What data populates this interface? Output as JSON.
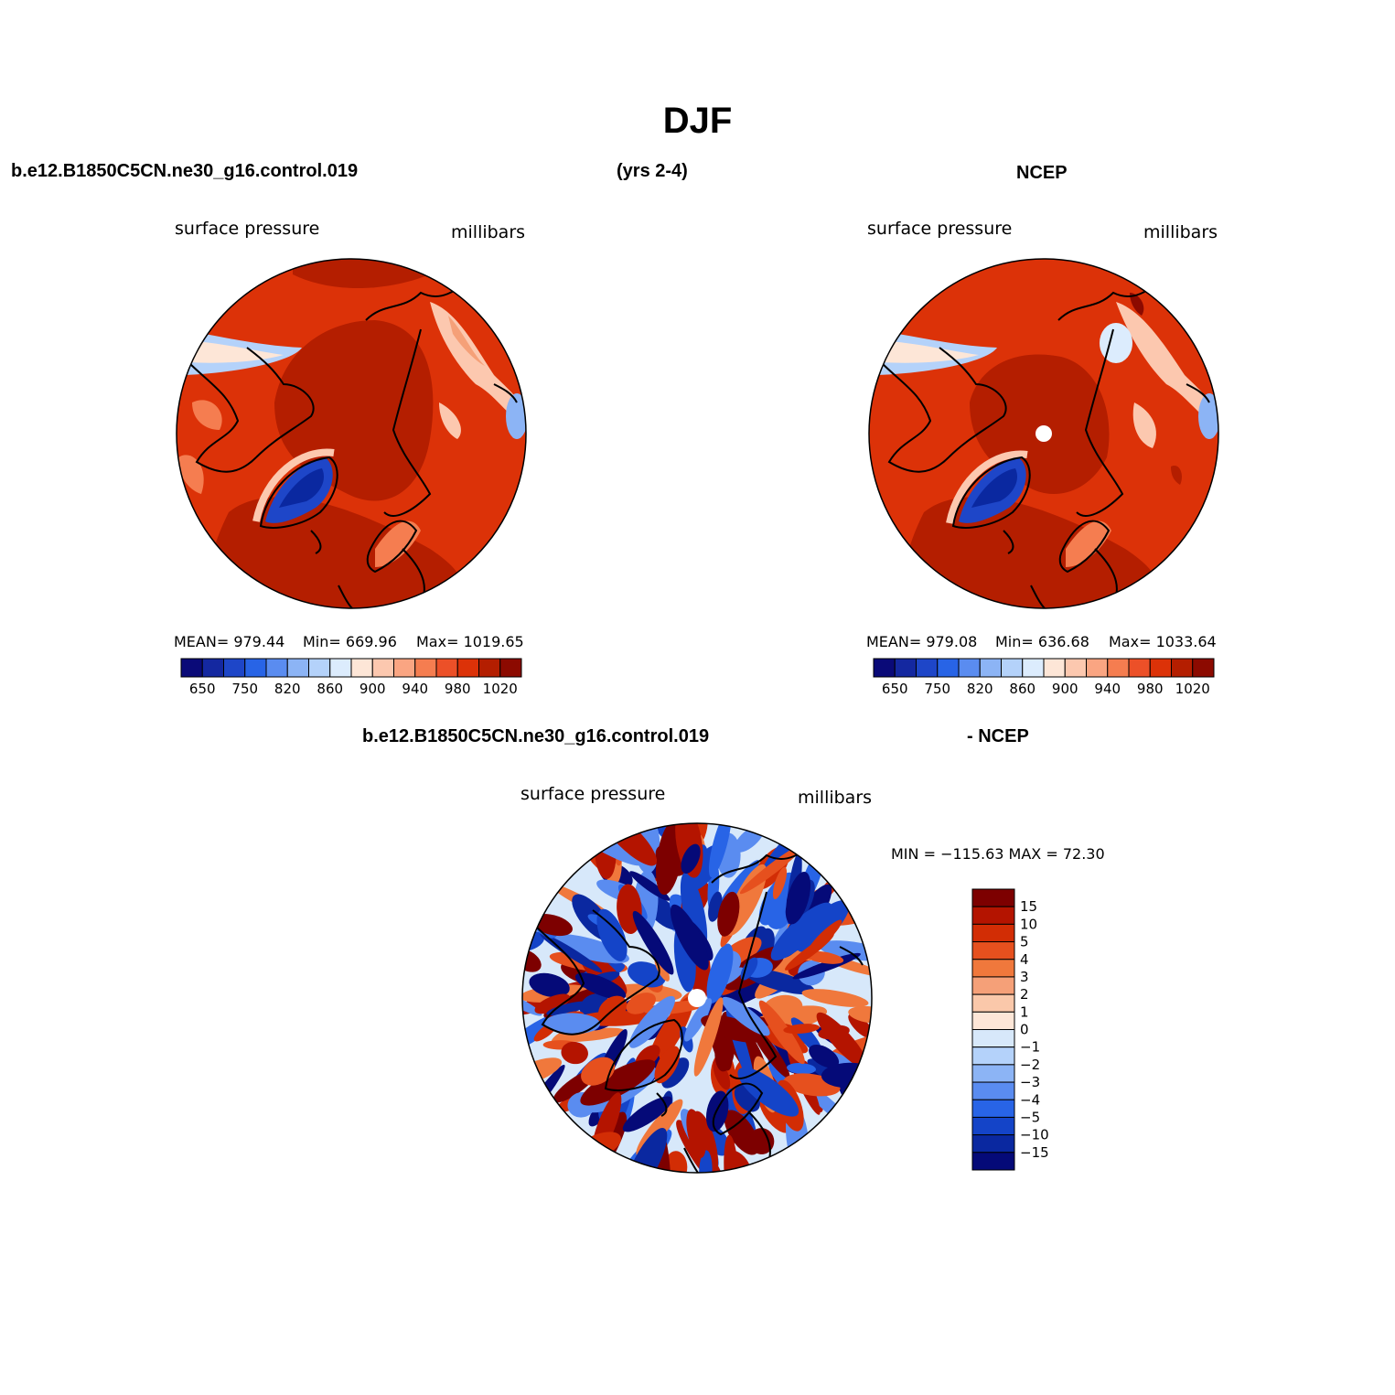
{
  "title": "DJF",
  "headers": {
    "case_name": "b.e12.B1850C5CN.ne30_g16.control.019",
    "years": "(yrs 2-4)",
    "obs_name": "NCEP",
    "diff_case": "b.e12.B1850C5CN.ne30_g16.control.019",
    "diff_obs": "- NCEP"
  },
  "panels": [
    {
      "id": "model",
      "variable": "surface pressure",
      "units": "millibars",
      "mean_text": "MEAN= 979.44",
      "min_text": "Min= 669.96",
      "max_text": "Max= 1019.65"
    },
    {
      "id": "obs",
      "variable": "surface pressure",
      "units": "millibars",
      "mean_text": "MEAN= 979.08",
      "min_text": "Min= 636.68",
      "max_text": "Max= 1033.64"
    },
    {
      "id": "diff",
      "variable": "surface pressure",
      "units": "millibars",
      "minmax_text": "MIN = −115.63 MAX =   72.30"
    }
  ],
  "colorbar_abs": {
    "tick_labels": [
      "650",
      "750",
      "820",
      "860",
      "900",
      "940",
      "980",
      "1020"
    ],
    "colors": [
      "#0a0a78",
      "#1428a0",
      "#1e46c8",
      "#2864e6",
      "#5a8cf0",
      "#8cb4f5",
      "#b4d2fa",
      "#dcecfd",
      "#fde6d7",
      "#fcc8af",
      "#faa582",
      "#f57d50",
      "#ec5028",
      "#dc3208",
      "#b41e00",
      "#8c0a00"
    ]
  },
  "colorbar_diff": {
    "tick_labels": [
      "15",
      "10",
      "5",
      "4",
      "3",
      "2",
      "1",
      "0",
      "−1",
      "−2",
      "−3",
      "−4",
      "−5",
      "−10",
      "−15"
    ],
    "colors": [
      "#7d0000",
      "#b41400",
      "#d22d05",
      "#e6501e",
      "#f0783c",
      "#f5a078",
      "#fac8aa",
      "#fde6d7",
      "#d7e8fa",
      "#b4d2fa",
      "#8cb4f5",
      "#5a8cf0",
      "#2864e6",
      "#1444c8",
      "#0a28a0",
      "#050a78"
    ]
  }
}
